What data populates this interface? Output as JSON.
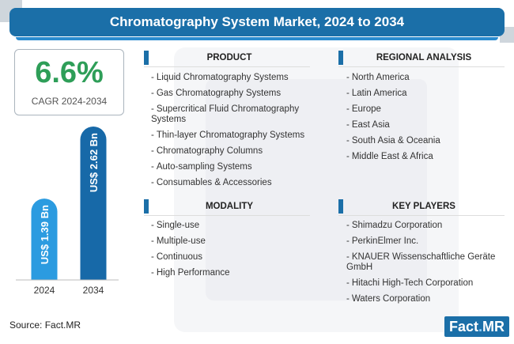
{
  "title": "Chromatography System Market, 2024 to 2034",
  "cagr": {
    "value": "6.6%",
    "label": "CAGR 2024-2034"
  },
  "colors": {
    "primary": "#1b6fa8",
    "bar_2024": "#2b9be0",
    "bar_2034": "#1769a8",
    "cagr": "#2e9e58"
  },
  "chart_data": {
    "type": "bar",
    "categories": [
      "2024",
      "2034"
    ],
    "values": [
      1.39,
      2.62
    ],
    "value_labels": [
      "US$ 1.39 Bn",
      "US$ 2.62 Bn"
    ],
    "unit": "US$ Bn",
    "title": "",
    "xlabel": "",
    "ylabel": "",
    "ylim": [
      0,
      2.62
    ],
    "grid": false,
    "legend": "none"
  },
  "sections": {
    "product": {
      "heading": "PRODUCT",
      "items": [
        "Liquid Chromatography Systems",
        "Gas Chromatography Systems",
        "Supercritical Fluid Chromatography Systems",
        "Thin-layer Chromatography Systems",
        "Chromatography Columns",
        "Auto-sampling Systems",
        "Consumables & Accessories"
      ]
    },
    "regional": {
      "heading": "REGIONAL ANALYSIS",
      "items": [
        "North America",
        "Latin America",
        "Europe",
        "East Asia",
        "South Asia & Oceania",
        "Middle East & Africa"
      ]
    },
    "modality": {
      "heading": "MODALITY",
      "items": [
        "Single-use",
        "Multiple-use",
        "Continuous",
        "High Performance"
      ]
    },
    "players": {
      "heading": "KEY PLAYERS",
      "items": [
        "Shimadzu Corporation",
        "PerkinElmer Inc.",
        "KNAUER Wissenschaftliche Geräte GmbH",
        "Hitachi High-Tech Corporation",
        "Waters Corporation"
      ]
    }
  },
  "footer": {
    "source": "Source: Fact.MR",
    "logo_left": "Fact",
    "logo_dot": ".",
    "logo_right": "MR"
  }
}
